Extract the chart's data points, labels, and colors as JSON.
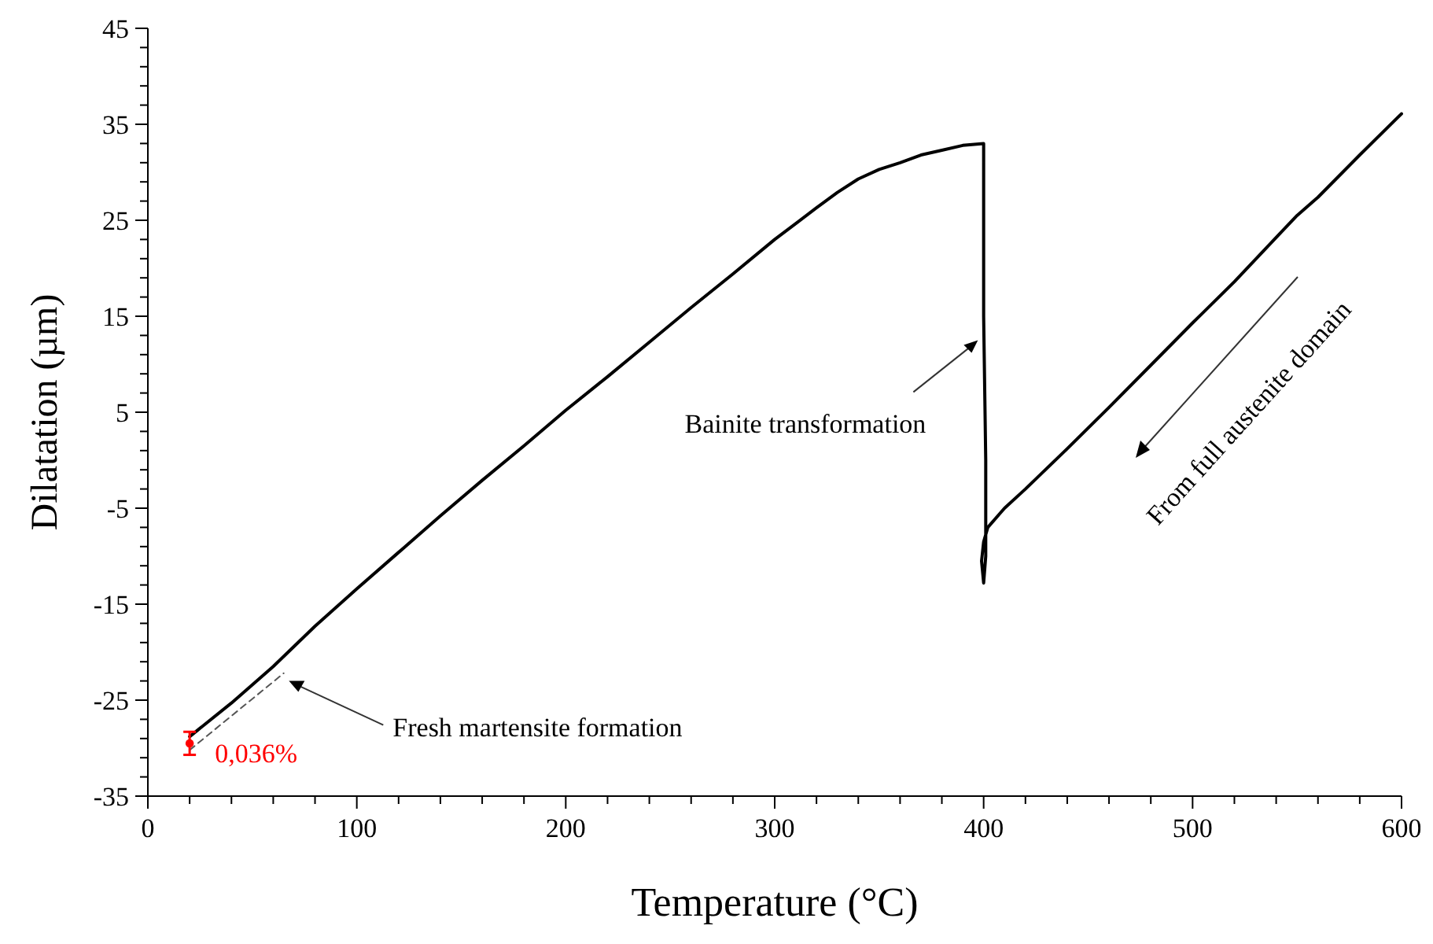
{
  "chart_data": {
    "type": "line",
    "xlabel": "Temperature (°C)",
    "ylabel": "Dilatation (µm)",
    "xlim": [
      0,
      600
    ],
    "ylim": [
      -35,
      45
    ],
    "xticks": [
      0,
      {
        "value": 20,
        "label": null
      },
      {
        "value": 40,
        "label": null
      },
      {
        "value": 60,
        "label": null
      },
      {
        "value": 80,
        "label": null
      },
      100,
      {
        "value": 120,
        "label": null
      },
      {
        "value": 140,
        "label": null
      },
      {
        "value": 160,
        "label": null
      },
      {
        "value": 180,
        "label": null
      },
      200,
      {
        "value": 220,
        "label": null
      },
      {
        "value": 240,
        "label": null
      },
      {
        "value": 260,
        "label": null
      },
      {
        "value": 280,
        "label": null
      },
      300,
      {
        "value": 320,
        "label": null
      },
      {
        "value": 340,
        "label": null
      },
      {
        "value": 360,
        "label": null
      },
      {
        "value": 380,
        "label": null
      },
      400,
      {
        "value": 420,
        "label": null
      },
      {
        "value": 440,
        "label": null
      },
      {
        "value": 460,
        "label": null
      },
      {
        "value": 480,
        "label": null
      },
      500,
      {
        "value": 520,
        "label": null
      },
      {
        "value": 540,
        "label": null
      },
      {
        "value": 560,
        "label": null
      },
      {
        "value": 580,
        "label": null
      },
      600
    ],
    "yticks": [
      -35,
      {
        "value": -33,
        "label": null
      },
      {
        "value": -31,
        "label": null
      },
      {
        "value": -29,
        "label": null
      },
      {
        "value": -27,
        "label": null
      },
      -25,
      {
        "value": -23,
        "label": null
      },
      {
        "value": -21,
        "label": null
      },
      {
        "value": -19,
        "label": null
      },
      {
        "value": -17,
        "label": null
      },
      -15,
      {
        "value": -13,
        "label": null
      },
      {
        "value": -11,
        "label": null
      },
      {
        "value": -9,
        "label": null
      },
      {
        "value": -7,
        "label": null
      },
      -5,
      {
        "value": -3,
        "label": null
      },
      {
        "value": -1,
        "label": null
      },
      {
        "value": 1,
        "label": null
      },
      {
        "value": 3,
        "label": null
      },
      5,
      {
        "value": 7,
        "label": null
      },
      {
        "value": 9,
        "label": null
      },
      {
        "value": 11,
        "label": null
      },
      {
        "value": 13,
        "label": null
      },
      15,
      {
        "value": 17,
        "label": null
      },
      {
        "value": 19,
        "label": null
      },
      {
        "value": 21,
        "label": null
      },
      {
        "value": 23,
        "label": null
      },
      25,
      {
        "value": 27,
        "label": null
      },
      {
        "value": 29,
        "label": null
      },
      {
        "value": 31,
        "label": null
      },
      {
        "value": 33,
        "label": null
      },
      35,
      {
        "value": 37,
        "label": null
      },
      {
        "value": 39,
        "label": null
      },
      {
        "value": 41,
        "label": null
      },
      {
        "value": 43,
        "label": null
      },
      45
    ],
    "grid": false,
    "marker": "none",
    "line_style": "solid",
    "series": [
      {
        "color": "#000000",
        "x": [
          600,
          580,
          560,
          550,
          540,
          520,
          500,
          480,
          460,
          440,
          420,
          410,
          402,
          400,
          399,
          400,
          401,
          401,
          400,
          400,
          390,
          380,
          370,
          360,
          350,
          340,
          330,
          320,
          300,
          280,
          260,
          240,
          220,
          200,
          180,
          160,
          140,
          120,
          100,
          80,
          60,
          40,
          20
        ],
        "values": [
          36.1,
          31.8,
          27.4,
          25.5,
          23.2,
          18.6,
          14.3,
          9.9,
          5.5,
          1.2,
          -3.0,
          -5.0,
          -7.0,
          -8.5,
          -10.5,
          -12.8,
          -10,
          0,
          15,
          33.0,
          32.8,
          32.3,
          31.8,
          31.0,
          30.3,
          29.3,
          27.9,
          26.3,
          23.0,
          19.4,
          15.9,
          12.3,
          8.7,
          5.2,
          1.5,
          -2.1,
          -5.8,
          -9.6,
          -13.4,
          -17.3,
          -21.5,
          -25.3,
          -28.8
        ]
      },
      {
        "type": "line",
        "color": "#555555",
        "line_style": "dashed",
        "x": [
          20,
          65
        ],
        "values": [
          -30.2,
          -22.2
        ]
      },
      {
        "type": "scatter",
        "color": "#ff0000",
        "marker": "circle",
        "x": [
          20
        ],
        "values": [
          -29.5
        ],
        "errors": [
          1.2
        ]
      }
    ],
    "annotations": [
      {
        "text": "Bainite transformation",
        "x": 398,
        "y": 13
      },
      {
        "text": "Fresh martensite formation",
        "x": 66,
        "y": -23
      },
      "From full austenite domain",
      {
        "text": "0,036%",
        "x": 20,
        "y": -29.5
      }
    ]
  }
}
